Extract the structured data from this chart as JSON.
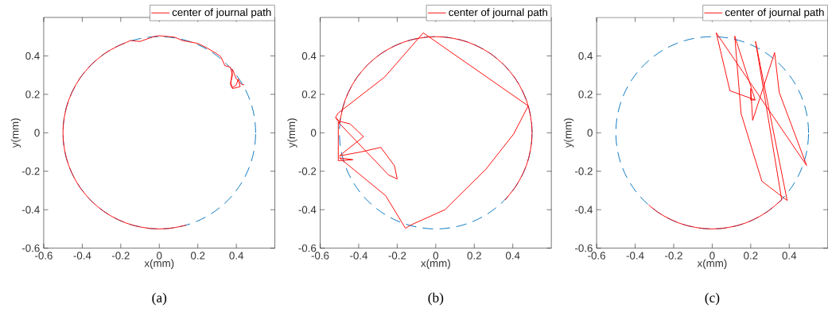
{
  "chart_data": [
    {
      "type": "line",
      "xlabel": "x(mm)",
      "ylabel": "y(mm)",
      "xlim": [
        -0.6,
        0.6
      ],
      "ylim": [
        -0.6,
        0.6
      ],
      "xticks": [
        -0.6,
        -0.4,
        -0.2,
        0,
        0.2,
        0.4
      ],
      "yticks": [
        -0.6,
        -0.4,
        -0.2,
        0,
        0.2,
        0.4
      ],
      "legend": "top right",
      "annotations": [
        "(a)"
      ],
      "series": [
        {
          "name": "center of journal path",
          "color": "#ff0000",
          "line_style": "solid",
          "x": [
            0.14,
            0.129,
            0.087,
            0.044,
            0,
            -0.044,
            -0.087,
            -0.129,
            -0.171,
            -0.211,
            -0.25,
            -0.287,
            -0.321,
            -0.354,
            -0.383,
            -0.41,
            -0.433,
            -0.453,
            -0.47,
            -0.483,
            -0.492,
            -0.498,
            -0.5,
            -0.498,
            -0.492,
            -0.483,
            -0.47,
            -0.453,
            -0.433,
            -0.41,
            -0.383,
            -0.354,
            -0.321,
            -0.287,
            -0.25,
            -0.211,
            -0.171,
            -0.15,
            -0.1,
            -0.03,
            0,
            0.08,
            0.12,
            0.2,
            0.25,
            0.3,
            0.32,
            0.34,
            0.37,
            0.375,
            0.38,
            0.37,
            0.38,
            0.4,
            0.41,
            0.42,
            0.38,
            0.37,
            0.38,
            0.4,
            0.43,
            0.44
          ],
          "values": [
            -0.48,
            -0.483,
            -0.492,
            -0.498,
            -0.5,
            -0.498,
            -0.492,
            -0.483,
            -0.47,
            -0.453,
            -0.433,
            -0.41,
            -0.383,
            -0.354,
            -0.321,
            -0.287,
            -0.25,
            -0.211,
            -0.171,
            -0.129,
            -0.087,
            -0.044,
            0,
            0.044,
            0.087,
            0.129,
            0.171,
            0.211,
            0.25,
            0.287,
            0.321,
            0.354,
            0.383,
            0.41,
            0.433,
            0.453,
            0.47,
            0.48,
            0.475,
            0.5,
            0.505,
            0.497,
            0.48,
            0.465,
            0.44,
            0.41,
            0.395,
            0.35,
            0.34,
            0.32,
            0.3,
            0.26,
            0.235,
            0.25,
            0.28,
            0.24,
            0.23,
            0.25,
            0.33,
            0.28,
            0.25,
            0.25
          ]
        }
      ]
    },
    {
      "type": "line",
      "xlabel": "x(mm)",
      "ylabel": "y(mm)",
      "xlim": [
        -0.6,
        0.6
      ],
      "ylim": [
        -0.6,
        0.6
      ],
      "xticks": [
        -0.6,
        -0.4,
        -0.2,
        0,
        0.2,
        0.4
      ],
      "yticks": [
        -0.6,
        -0.4,
        -0.2,
        0,
        0.2,
        0.4
      ],
      "legend": "top right",
      "annotations": [
        "(b)"
      ],
      "series": [
        {
          "name": "center of journal path",
          "color": "#ff0000",
          "line_style": "solid",
          "x": [
            0.36,
            0.383,
            0.41,
            0.433,
            0.453,
            0.47,
            0.483,
            0.492,
            0.498,
            0.5,
            0.498,
            0.492,
            0.483,
            0.47,
            0.453,
            0.433,
            0.41,
            0.383,
            0.354,
            0.321,
            0.287,
            0.25,
            0.211,
            0.171,
            0.129,
            0.087,
            0.044,
            0,
            -0.044,
            -0.087,
            -0.129,
            -0.171,
            -0.211,
            -0.25,
            -0.287,
            -0.321,
            -0.354,
            -0.383,
            -0.41,
            -0.433,
            -0.453,
            -0.47,
            -0.483,
            -0.492,
            -0.5,
            -0.52,
            -0.5,
            -0.444,
            -0.375,
            -0.5,
            -0.39,
            -0.285,
            -0.214,
            -0.2,
            -0.244,
            -0.506,
            -0.506,
            -0.43,
            -0.5,
            -0.26,
            -0.157,
            -0.13,
            0.048,
            0.26,
            0.404,
            0.48,
            -0.065,
            -0.265,
            -0.506,
            -0.52
          ],
          "values": [
            -0.35,
            -0.321,
            -0.287,
            -0.25,
            -0.211,
            -0.171,
            -0.129,
            -0.087,
            -0.044,
            0,
            0.044,
            0.087,
            0.129,
            0.171,
            0.211,
            0.25,
            0.287,
            0.321,
            0.354,
            0.383,
            0.41,
            0.433,
            0.453,
            0.47,
            0.483,
            0.492,
            0.498,
            0.5,
            0.498,
            0.492,
            0.483,
            0.47,
            0.453,
            0.433,
            0.41,
            0.383,
            0.354,
            0.321,
            0.287,
            0.25,
            0.211,
            0.171,
            0.129,
            0.087,
            0.05,
            0.08,
            0.06,
            0.046,
            -0.02,
            -0.12,
            -0.1,
            -0.076,
            -0.172,
            -0.24,
            -0.22,
            0.055,
            -0.145,
            -0.14,
            -0.13,
            -0.327,
            -0.497,
            -0.48,
            -0.4,
            -0.19,
            -0.007,
            0.14,
            0.52,
            0.29,
            0.103,
            0.08
          ]
        }
      ]
    },
    {
      "type": "line",
      "xlabel": "x(mm)",
      "ylabel": "y(mm)",
      "xlim": [
        -0.6,
        0.6
      ],
      "ylim": [
        -0.6,
        0.6
      ],
      "xticks": [
        -0.6,
        -0.4,
        -0.2,
        0,
        0.2,
        0.4
      ],
      "yticks": [
        -0.6,
        -0.4,
        -0.2,
        0,
        0.2,
        0.4
      ],
      "legend": "top right",
      "annotations": [
        "(c)"
      ],
      "series": [
        {
          "name": "center of journal path",
          "color": "#ff0000",
          "line_style": "solid",
          "x": [
            -0.33,
            -0.321,
            -0.287,
            -0.25,
            -0.211,
            -0.171,
            -0.129,
            -0.087,
            -0.044,
            0,
            0.044,
            0.087,
            0.129,
            0.171,
            0.211,
            0.25,
            0.287,
            0.321,
            0.361,
            0.225,
            0.389,
            0.258,
            0.15,
            0.117,
            0.223,
            0.092,
            0.021,
            0.49,
            0.348,
            0.324,
            0.21,
            0.2,
            0.2,
            0.223
          ],
          "values": [
            -0.375,
            -0.383,
            -0.41,
            -0.433,
            -0.453,
            -0.47,
            -0.483,
            -0.492,
            -0.498,
            -0.5,
            -0.498,
            -0.492,
            -0.483,
            -0.47,
            -0.453,
            -0.433,
            -0.41,
            -0.383,
            -0.349,
            0.475,
            -0.352,
            -0.252,
            0.1,
            0.503,
            0.171,
            0.219,
            0.52,
            -0.17,
            0.21,
            0.417,
            0.065,
            0.23,
            0.17,
            0.171
          ]
        }
      ]
    }
  ]
}
